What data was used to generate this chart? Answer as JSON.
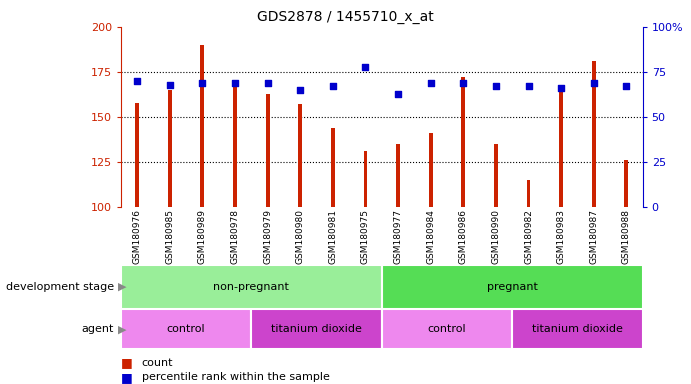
{
  "title": "GDS2878 / 1455710_x_at",
  "samples": [
    "GSM180976",
    "GSM180985",
    "GSM180989",
    "GSM180978",
    "GSM180979",
    "GSM180980",
    "GSM180981",
    "GSM180975",
    "GSM180977",
    "GSM180984",
    "GSM180986",
    "GSM180990",
    "GSM180982",
    "GSM180983",
    "GSM180987",
    "GSM180988"
  ],
  "counts": [
    158,
    165,
    190,
    168,
    163,
    157,
    144,
    131,
    135,
    141,
    172,
    135,
    115,
    168,
    181,
    126
  ],
  "percentiles": [
    70,
    68,
    69,
    69,
    69,
    65,
    67,
    78,
    63,
    69,
    69,
    67,
    67,
    66,
    69,
    67
  ],
  "y_min": 100,
  "y_max": 200,
  "y_ticks": [
    100,
    125,
    150,
    175,
    200
  ],
  "y2_ticks": [
    0,
    25,
    50,
    75,
    100
  ],
  "bar_color": "#cc2200",
  "dot_color": "#0000cc",
  "background_color": "#ffffff",
  "dev_stage_groups": [
    {
      "label": "non-pregnant",
      "start": 0,
      "end": 7,
      "color": "#99ee99"
    },
    {
      "label": "pregnant",
      "start": 8,
      "end": 15,
      "color": "#55dd55"
    }
  ],
  "agent_groups": [
    {
      "label": "control",
      "start": 0,
      "end": 3,
      "color": "#ee88ee"
    },
    {
      "label": "titanium dioxide",
      "start": 4,
      "end": 7,
      "color": "#cc44cc"
    },
    {
      "label": "control",
      "start": 8,
      "end": 11,
      "color": "#ee88ee"
    },
    {
      "label": "titanium dioxide",
      "start": 12,
      "end": 15,
      "color": "#cc44cc"
    }
  ],
  "tick_label_color_left": "#cc2200",
  "tick_label_color_right": "#0000cc",
  "panel_bg": "#d8d8d8"
}
